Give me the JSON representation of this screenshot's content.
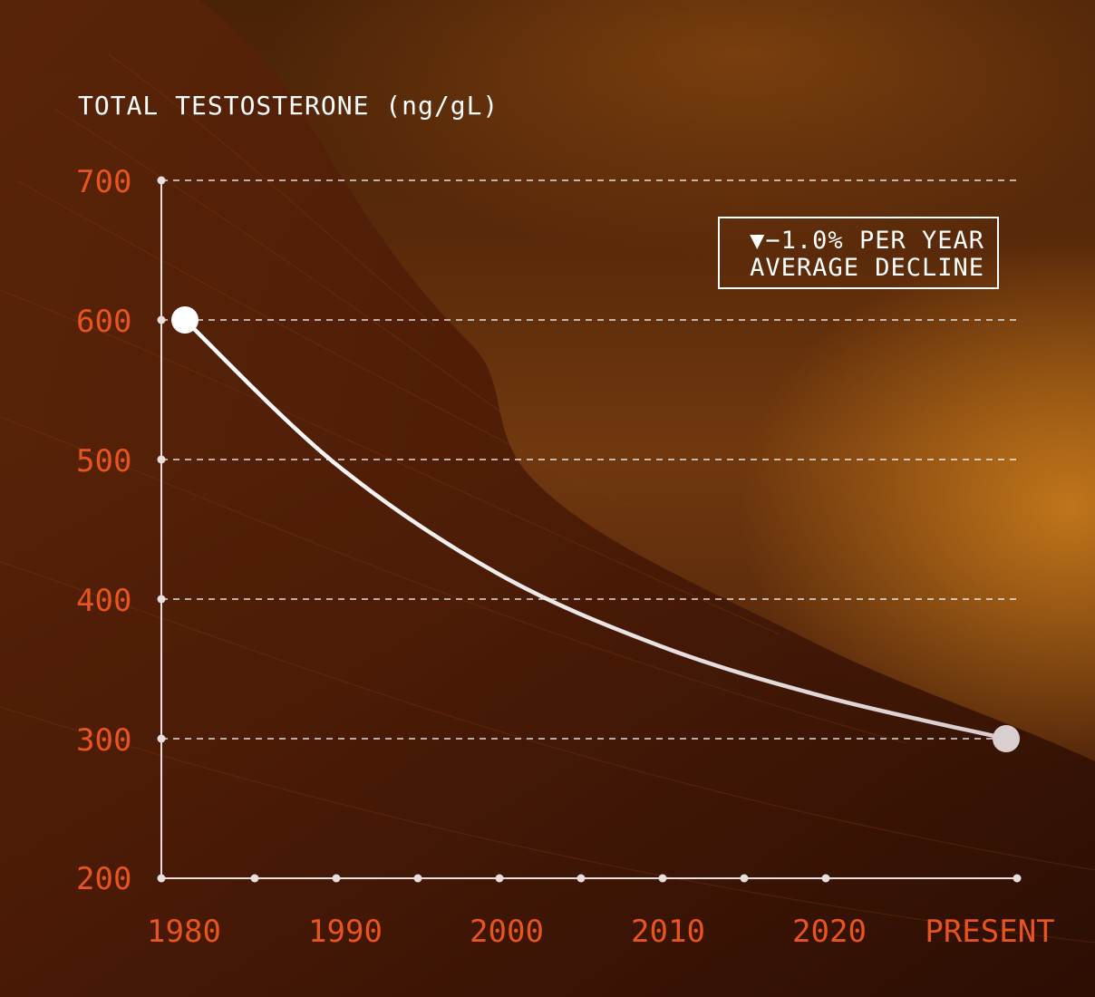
{
  "chart_data": {
    "type": "line",
    "ylabel": "TOTAL TESTOSTERONE (ng/gL)",
    "ylim": [
      200,
      700
    ],
    "yticks": [
      700,
      600,
      500,
      400,
      300,
      200
    ],
    "x_tick_labels": [
      "1980",
      "1990",
      "2000",
      "2010",
      "2020",
      "PRESENT"
    ],
    "series": [
      {
        "x": [
          "1980",
          "1990",
          "2000",
          "2010",
          "2020",
          "PRESENT"
        ],
        "values": [
          600,
          497,
          418,
          366,
          330,
          300
        ]
      }
    ],
    "annotation": {
      "line1": "▼−1.0% PER YEAR",
      "line2": "AVERAGE DECLINE"
    },
    "grid": "horizontal dashed",
    "colors": {
      "tick_labels": "#e8541e",
      "line": "#ffffff",
      "axis": "#e9dede"
    }
  }
}
